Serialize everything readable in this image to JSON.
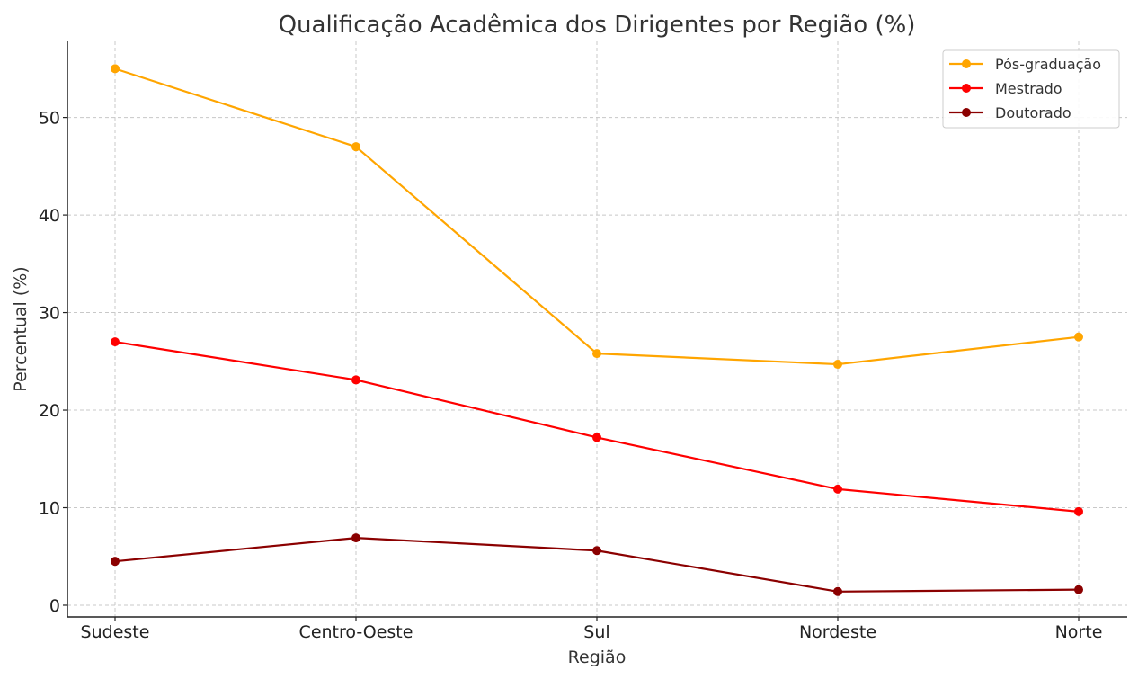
{
  "chart_data": {
    "type": "line",
    "title": "Qualificação Acadêmica dos Dirigentes por Região (%)",
    "xlabel": "Região",
    "ylabel": "Percentual (%)",
    "categories": [
      "Sudeste",
      "Centro-Oeste",
      "Sul",
      "Nordeste",
      "Norte"
    ],
    "ylim": [
      -1.2,
      57.8
    ],
    "yticks": [
      0,
      10,
      20,
      30,
      40,
      50
    ],
    "grid": true,
    "legend_position": "top-right",
    "series": [
      {
        "name": "Pós-graduação",
        "color": "#FFA500",
        "values": [
          55.0,
          47.0,
          25.8,
          24.7,
          27.5
        ]
      },
      {
        "name": "Mestrado",
        "color": "#FF0000",
        "values": [
          27.0,
          23.1,
          17.2,
          11.9,
          9.6
        ]
      },
      {
        "name": "Doutorado",
        "color": "#8B0000",
        "values": [
          4.5,
          6.9,
          5.6,
          1.4,
          1.6
        ]
      }
    ]
  }
}
